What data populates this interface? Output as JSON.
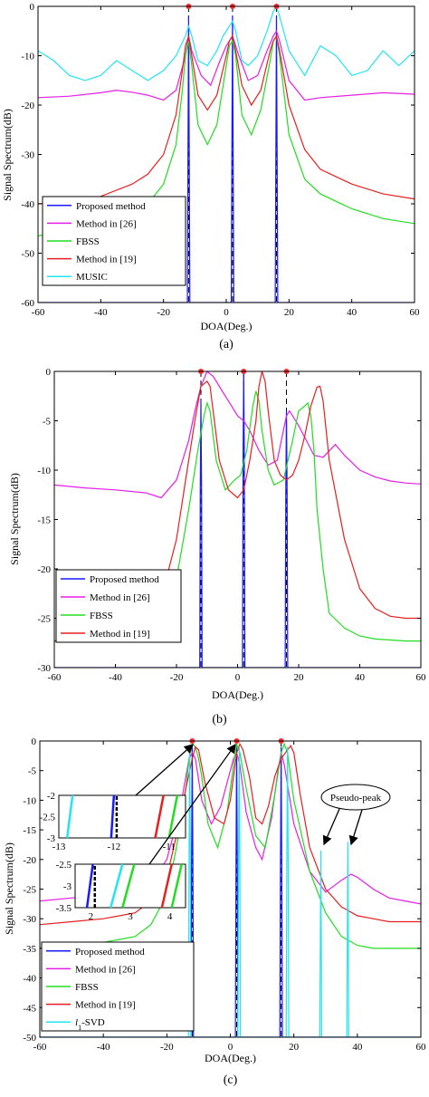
{
  "chart_data": [
    {
      "type": "line",
      "caption": "(a)",
      "xlabel": "DOA(Deg.)",
      "ylabel": "Signal Spectrum(dB)",
      "xlim": [
        -60,
        60
      ],
      "ylim": [
        -60,
        0
      ],
      "xticks": [
        "-60",
        "-40",
        "-20",
        "0",
        "20",
        "40",
        "60"
      ],
      "yticks": [
        "0",
        "-10",
        "-20",
        "-30",
        "-40",
        "-50",
        "-60"
      ],
      "true_doas": [
        -12,
        2,
        16
      ],
      "legend_location": "lower-left",
      "series": [
        {
          "name": "Proposed method",
          "color": "#1a1aff",
          "x": [
            -60,
            -12.4,
            -12.2,
            -12,
            -11.8,
            -11.6,
            1.6,
            1.8,
            2,
            2.2,
            2.4,
            15.6,
            15.8,
            16,
            16.2,
            16.4,
            60
          ],
          "y": [
            -60,
            -60,
            -30,
            -2,
            -30,
            -60,
            -60,
            -30,
            -2,
            -30,
            -60,
            -60,
            -30,
            -2,
            -30,
            -60,
            -60
          ]
        },
        {
          "name": "Method in [26]",
          "color": "#e61ee6",
          "x": [
            -60,
            -50,
            -40,
            -35,
            -30,
            -25,
            -20,
            -16,
            -13,
            -12,
            -11,
            -8,
            -5,
            -2,
            0,
            2,
            4,
            7,
            10,
            13,
            15,
            16,
            17,
            20,
            25,
            30,
            40,
            50,
            60
          ],
          "y": [
            -18.5,
            -18.2,
            -17.5,
            -17,
            -17.4,
            -18,
            -19,
            -17,
            -10,
            -6,
            -9,
            -14,
            -16,
            -11,
            -8,
            -6,
            -10,
            -15,
            -14,
            -9,
            -6,
            -5,
            -7,
            -15,
            -19,
            -18.5,
            -18,
            -17.5,
            -17.8
          ]
        },
        {
          "name": "FBSS",
          "color": "#22dd22",
          "x": [
            -60,
            -50,
            -40,
            -30,
            -25,
            -20,
            -16,
            -14,
            -13,
            -12,
            -11,
            -9,
            -6,
            -3,
            0,
            1,
            2,
            3,
            5,
            8,
            11,
            14,
            15,
            16,
            17,
            20,
            25,
            30,
            40,
            50,
            60
          ],
          "y": [
            -46.5,
            -45.5,
            -44,
            -42,
            -40,
            -36,
            -28,
            -17,
            -10,
            -7,
            -12,
            -24,
            -28,
            -24,
            -12,
            -8,
            -7,
            -10,
            -22,
            -26,
            -21,
            -11,
            -7,
            -6,
            -10,
            -26,
            -35,
            -38,
            -41,
            -43,
            -44
          ]
        },
        {
          "name": "Method in [19]",
          "color": "#e62020",
          "x": [
            -60,
            -50,
            -40,
            -30,
            -25,
            -20,
            -16,
            -14,
            -13,
            -12,
            -11,
            -9,
            -6,
            -3,
            0,
            1,
            2,
            3,
            5,
            8,
            11,
            14,
            15,
            16,
            17,
            20,
            25,
            30,
            40,
            50,
            60
          ],
          "y": [
            -40,
            -39.5,
            -38.5,
            -36,
            -34,
            -30,
            -22,
            -13,
            -8,
            -6,
            -10,
            -18,
            -21,
            -18,
            -10,
            -7,
            -6,
            -9,
            -16,
            -20,
            -17,
            -9,
            -7,
            -6,
            -9,
            -20,
            -29,
            -33,
            -36,
            -38,
            -39
          ]
        },
        {
          "name": "MUSIC",
          "color": "#22e5f0",
          "x": [
            -60,
            -55,
            -50,
            -45,
            -40,
            -35,
            -30,
            -25,
            -20,
            -16,
            -13,
            -12,
            -11,
            -9,
            -6,
            -3,
            -1,
            1,
            2,
            3,
            5,
            7,
            10,
            13,
            15,
            16,
            17,
            20,
            25,
            30,
            35,
            40,
            45,
            50,
            55,
            60
          ],
          "y": [
            -9,
            -11,
            -14,
            -15,
            -14,
            -11,
            -13,
            -15,
            -13,
            -10,
            -6,
            -4,
            -6,
            -11,
            -12,
            -9,
            -6,
            -4,
            -3,
            -5,
            -11,
            -12,
            -10,
            -5,
            -1,
            0,
            -2,
            -9,
            -14,
            -8,
            -10,
            -14,
            -13,
            -9,
            -12,
            -9
          ]
        }
      ],
      "markers": [
        {
          "x": -12,
          "y": 0,
          "color": "#ff2a2a"
        },
        {
          "x": 2,
          "y": 0,
          "color": "#ff2a2a"
        },
        {
          "x": 16,
          "y": 0,
          "color": "#ff2a2a"
        }
      ]
    },
    {
      "type": "line",
      "caption": "(b)",
      "xlabel": "DOA(Deg.)",
      "ylabel": "Signal Spectrum(dB)",
      "xlim": [
        -60,
        60
      ],
      "ylim": [
        -30,
        0
      ],
      "xticks": [
        "-60",
        "-40",
        "-20",
        "0",
        "20",
        "40",
        "60"
      ],
      "yticks": [
        "0",
        "-5",
        "-10",
        "-15",
        "-20",
        "-25",
        "-30"
      ],
      "true_doas": [
        -12,
        2,
        16
      ],
      "legend_location": "lower-left",
      "series": [
        {
          "name": "Proposed method",
          "color": "#1a1aff",
          "x": [
            -60,
            -12.4,
            -12.2,
            -12,
            -11.8,
            -11.6,
            1.6,
            1.8,
            2,
            2.2,
            2.4,
            15.6,
            15.8,
            16,
            16.2,
            16.4,
            60
          ],
          "y": [
            -30,
            -30,
            -12,
            -3,
            -12,
            -30,
            -30,
            -8,
            0,
            -8,
            -30,
            -30,
            -12,
            -4,
            -12,
            -30,
            -30
          ]
        },
        {
          "name": "Method in [26]",
          "color": "#e61ee6",
          "x": [
            -60,
            -50,
            -40,
            -30,
            -25,
            -20,
            -16,
            -14,
            -12,
            -10,
            -8,
            -5,
            -2,
            0,
            2,
            4,
            7,
            10,
            13,
            15,
            16,
            17,
            20,
            25,
            28,
            32,
            35,
            40,
            45,
            50,
            55,
            60
          ],
          "y": [
            -11.5,
            -11.8,
            -12,
            -12.3,
            -12.8,
            -11,
            -7,
            -4,
            -1.5,
            0,
            -0.5,
            -2,
            -3.5,
            -4.5,
            -5,
            -6,
            -8,
            -9.5,
            -9,
            -6,
            -4.5,
            -4,
            -5.5,
            -8.5,
            -8.7,
            -7.4,
            -8.5,
            -10,
            -10.7,
            -11.1,
            -11.3,
            -11.4
          ]
        },
        {
          "name": "FBSS",
          "color": "#22dd22",
          "x": [
            -60,
            -50,
            -40,
            -35,
            -30,
            -25,
            -20,
            -16,
            -13,
            -11,
            -10,
            -9,
            -7,
            -4,
            -1,
            1,
            3,
            5,
            6,
            7,
            8,
            10,
            12,
            15,
            18,
            20,
            22,
            23,
            24,
            25,
            26,
            28,
            30,
            35,
            40,
            45,
            50,
            55,
            60
          ],
          "y": [
            -27.3,
            -27.1,
            -26.7,
            -26.3,
            -25.8,
            -24.5,
            -21,
            -14,
            -8,
            -4.5,
            -3.2,
            -4,
            -9,
            -12,
            -11,
            -10.5,
            -8,
            -3.5,
            -2,
            -3,
            -6,
            -10,
            -11.5,
            -11,
            -7,
            -4,
            -3.5,
            -3.2,
            -4.5,
            -8,
            -14,
            -20,
            -24.5,
            -26,
            -26.8,
            -27.1,
            -27.2,
            -27.3,
            -27.3
          ]
        },
        {
          "name": "Method in [19]",
          "color": "#e62020",
          "x": [
            -60,
            -50,
            -40,
            -35,
            -30,
            -25,
            -20,
            -17,
            -14,
            -12,
            -10,
            -9,
            -8,
            -6,
            -3,
            0,
            2,
            4,
            6,
            7,
            8,
            9,
            10,
            12,
            14,
            16,
            18,
            20,
            22,
            24,
            26,
            27,
            28,
            30,
            35,
            40,
            45,
            50,
            55,
            60
          ],
          "y": [
            -27.3,
            -27,
            -26.5,
            -26,
            -25,
            -23,
            -17,
            -11,
            -5,
            -1.5,
            -1,
            -1.5,
            -4,
            -9,
            -12,
            -12.8,
            -12,
            -9,
            -5,
            -1.5,
            0,
            -1,
            -4,
            -9,
            -10.5,
            -11,
            -10.5,
            -9,
            -6.5,
            -3.5,
            -1.6,
            -1.5,
            -3,
            -9,
            -17,
            -22,
            -24,
            -24.8,
            -25,
            -25
          ]
        }
      ],
      "markers": [
        {
          "x": -12,
          "y": 0,
          "color": "#ff2a2a"
        },
        {
          "x": 2,
          "y": 0,
          "color": "#ff2a2a"
        },
        {
          "x": 16,
          "y": 0,
          "color": "#ff2a2a"
        }
      ]
    },
    {
      "type": "line",
      "caption": "(c)",
      "xlabel": "DOA(Deg.)",
      "ylabel": "Signal Spectrum(dB)",
      "xlim": [
        -60,
        60
      ],
      "ylim": [
        -50,
        0
      ],
      "xticks": [
        "-60",
        "-40",
        "-20",
        "0",
        "20",
        "40",
        "60"
      ],
      "yticks": [
        "0",
        "-5",
        "-10",
        "-15",
        "-20",
        "-25",
        "-30",
        "-35",
        "-40",
        "-45",
        "-50"
      ],
      "true_doas": [
        -12,
        2,
        16
      ],
      "legend_location": "lower-left",
      "annotation": "Pseudo-peak",
      "series": [
        {
          "name": "Proposed method",
          "color": "#1a1aff",
          "x": [
            -60,
            -12.4,
            -12.2,
            -12,
            -11.8,
            -11.6,
            1.6,
            1.8,
            2,
            2.2,
            2.4,
            15.6,
            15.8,
            16,
            16.2,
            16.4,
            60
          ],
          "y": [
            -50,
            -50,
            -20,
            -1,
            -20,
            -50,
            -50,
            -20,
            -1,
            -20,
            -50,
            -50,
            -20,
            -1,
            -20,
            -50,
            -50
          ]
        },
        {
          "name": "Method in [26]",
          "color": "#e61ee6",
          "x": [
            -60,
            -50,
            -40,
            -30,
            -25,
            -20,
            -16,
            -14,
            -13,
            -12,
            -11,
            -9,
            -6,
            -3,
            0,
            1,
            2,
            3,
            5,
            8,
            10,
            13,
            15,
            16,
            17,
            20,
            25,
            30,
            35,
            38,
            40,
            45,
            50,
            55,
            60
          ],
          "y": [
            -27,
            -26.5,
            -26,
            -25,
            -24,
            -20,
            -12,
            -6,
            -3,
            -2,
            -3,
            -10,
            -14,
            -11,
            -5,
            -3,
            -2,
            -4,
            -12,
            -18,
            -20,
            -13,
            -5,
            -2,
            -4,
            -14,
            -22,
            -25.5,
            -23.5,
            -22.5,
            -23,
            -25,
            -26.5,
            -27,
            -27.5
          ]
        },
        {
          "name": "FBSS",
          "color": "#22dd22",
          "x": [
            -60,
            -50,
            -40,
            -30,
            -25,
            -20,
            -17,
            -14,
            -13,
            -12,
            -11,
            -10,
            -9,
            -7,
            -4,
            -1,
            1,
            2,
            3,
            5,
            8,
            11,
            14,
            16,
            17,
            18,
            20,
            25,
            30,
            35,
            40,
            45,
            50,
            55,
            60
          ],
          "y": [
            -35,
            -34.5,
            -34,
            -33,
            -31,
            -26,
            -18,
            -8,
            -3,
            -0.5,
            -1,
            -3,
            -6,
            -14,
            -18,
            -12,
            -4,
            -0.5,
            -2,
            -8,
            -16,
            -18,
            -9,
            -2,
            -0.5,
            -2,
            -10,
            -22,
            -29,
            -33,
            -34.5,
            -35,
            -35,
            -35,
            -35
          ]
        },
        {
          "name": "Method in [19]",
          "color": "#e62020",
          "x": [
            -60,
            -50,
            -40,
            -30,
            -25,
            -20,
            -17,
            -14,
            -12,
            -11,
            -10,
            -8,
            -5,
            -2,
            0,
            1,
            2,
            3,
            4,
            6,
            8,
            10,
            12,
            14,
            16,
            18,
            19,
            20,
            22,
            25,
            30,
            35,
            40,
            45,
            50,
            55,
            60
          ],
          "y": [
            -31,
            -30.5,
            -30,
            -29,
            -27,
            -23,
            -16,
            -8,
            -3,
            -1,
            -1.5,
            -7,
            -13,
            -14,
            -10,
            -6,
            -2,
            -0.5,
            -1.5,
            -6,
            -13,
            -14,
            -11,
            -6,
            -3,
            -1.5,
            -0.8,
            -2,
            -9,
            -18,
            -25,
            -28,
            -29.5,
            -30,
            -30.5,
            -30.5,
            -30.5
          ]
        },
        {
          "name": "l1-SVD",
          "color": "#22e5f0",
          "x": [
            -60,
            -13.2,
            -13,
            -12.8,
            -12.6,
            -12.4,
            2.4,
            2.6,
            2.8,
            3.0,
            3.2,
            17.6,
            17.8,
            18,
            18.2,
            18.4,
            28.2,
            28.5,
            28.8,
            36.7,
            37,
            37.3,
            60
          ],
          "y": [
            -50,
            -50,
            -20,
            -1,
            -20,
            -50,
            -50,
            -20,
            -1,
            -20,
            -50,
            -50,
            -20,
            -1,
            -20,
            -50,
            -50,
            -18.5,
            -50,
            -50,
            -17,
            -50,
            -50
          ]
        }
      ],
      "markers": [
        {
          "x": -12,
          "y": 0,
          "color": "#ff2a2a"
        },
        {
          "x": 2,
          "y": 0,
          "color": "#ff2a2a"
        },
        {
          "x": 16,
          "y": 0,
          "color": "#ff2a2a"
        }
      ],
      "insets": [
        {
          "xlim": [
            -13,
            -10.7
          ],
          "ylim": [
            -3,
            -2
          ],
          "xticks": [
            "-13",
            "-12",
            "-11"
          ],
          "yticks": [
            "-2",
            "-2.5",
            "-3"
          ]
        },
        {
          "xlim": [
            1.6,
            4.4
          ],
          "ylim": [
            -3.5,
            -2.5
          ],
          "xticks": [
            "2",
            "3",
            "4"
          ],
          "yticks": [
            "-2.5",
            "-3",
            "-3.5"
          ]
        }
      ]
    }
  ]
}
